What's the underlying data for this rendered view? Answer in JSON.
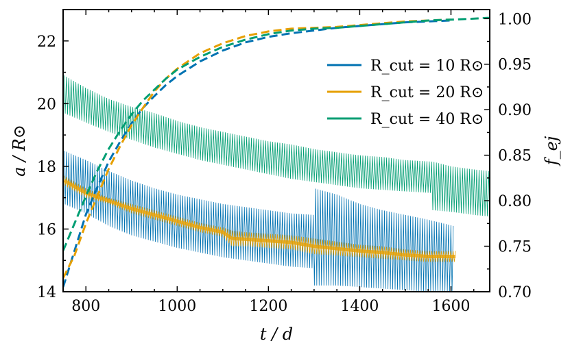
{
  "chart_data": {
    "type": "line",
    "title": "",
    "xlabel": "t / d",
    "ylabel_left": "a / R⊙",
    "ylabel_right": "f_ej",
    "xlim": [
      750,
      1685
    ],
    "ylim_left": [
      14,
      23
    ],
    "ylim_right": [
      0.7,
      1.01
    ],
    "xticks": [
      800,
      1000,
      1200,
      1400,
      1600
    ],
    "yticks_left": [
      14,
      16,
      18,
      20,
      22
    ],
    "yticks_right": [
      0.7,
      0.75,
      0.8,
      0.85,
      0.9,
      0.95,
      1.0
    ],
    "grid": false,
    "legend_position": "upper-right",
    "legend": [
      {
        "label": "R_cut = 10 R⊙",
        "color": "#0072b2"
      },
      {
        "label": "R_cut = 20 R⊙",
        "color": "#e69f00"
      },
      {
        "label": "R_cut = 40 R⊙",
        "color": "#009e73"
      }
    ],
    "series": [
      {
        "name": "R_cut = 10 R⊙ — separation a (oscillating band)",
        "axis": "left",
        "style": "band",
        "color": "#0072b2",
        "x": [
          752,
          800,
          850,
          900,
          950,
          1000,
          1050,
          1100,
          1150,
          1200,
          1250,
          1299,
          1300,
          1350,
          1400,
          1450,
          1500,
          1550,
          1605
        ],
        "low": [
          16.8,
          16.5,
          16.1,
          15.8,
          15.6,
          15.4,
          15.25,
          15.1,
          15.0,
          14.9,
          14.8,
          14.75,
          14.2,
          14.2,
          14.15,
          14.1,
          14.05,
          14.0,
          14.0
        ],
        "high": [
          18.5,
          18.2,
          17.85,
          17.55,
          17.3,
          17.1,
          16.95,
          16.8,
          16.7,
          16.6,
          16.5,
          16.45,
          17.3,
          17.1,
          16.8,
          16.6,
          16.45,
          16.3,
          16.1
        ]
      },
      {
        "name": "R_cut = 20 R⊙ — separation a (oscillating band)",
        "axis": "left",
        "style": "band",
        "color": "#e69f00",
        "x": [
          752,
          800,
          850,
          900,
          950,
          1000,
          1050,
          1100,
          1120,
          1150,
          1200,
          1250,
          1300,
          1350,
          1400,
          1450,
          1500,
          1550,
          1610
        ],
        "low": [
          17.4,
          17.0,
          16.8,
          16.5,
          16.3,
          16.1,
          15.9,
          15.75,
          15.45,
          15.45,
          15.4,
          15.35,
          15.2,
          15.15,
          15.1,
          15.05,
          15.0,
          14.95,
          14.95
        ],
        "high": [
          17.7,
          17.3,
          17.0,
          16.8,
          16.6,
          16.4,
          16.2,
          16.05,
          15.95,
          15.9,
          15.85,
          15.8,
          15.7,
          15.6,
          15.5,
          15.45,
          15.35,
          15.3,
          15.3
        ]
      },
      {
        "name": "R_cut = 40 R⊙ — separation a (oscillating band)",
        "axis": "left",
        "style": "band",
        "color": "#009e73",
        "x": [
          752,
          800,
          850,
          900,
          950,
          1000,
          1050,
          1100,
          1150,
          1200,
          1250,
          1300,
          1350,
          1400,
          1450,
          1500,
          1559,
          1560,
          1600,
          1650,
          1685
        ],
        "low": [
          19.7,
          19.4,
          19.1,
          18.85,
          18.6,
          18.4,
          18.2,
          18.05,
          17.9,
          17.75,
          17.6,
          17.5,
          17.4,
          17.3,
          17.25,
          17.2,
          17.15,
          16.6,
          16.55,
          16.45,
          16.4
        ],
        "high": [
          20.9,
          20.5,
          20.15,
          19.9,
          19.7,
          19.45,
          19.25,
          19.1,
          18.95,
          18.8,
          18.7,
          18.55,
          18.45,
          18.35,
          18.3,
          18.2,
          18.15,
          18.15,
          18.0,
          17.9,
          17.85
        ]
      },
      {
        "name": "R_cut = 10 R⊙ — f_ej",
        "axis": "right",
        "style": "dashed",
        "color": "#0072b2",
        "x": [
          750,
          775,
          800,
          825,
          850,
          875,
          900,
          925,
          950,
          975,
          1000,
          1050,
          1100,
          1150,
          1200,
          1250,
          1300,
          1350,
          1400,
          1450,
          1500,
          1550,
          1600
        ],
        "y": [
          0.705,
          0.745,
          0.785,
          0.815,
          0.843,
          0.865,
          0.885,
          0.902,
          0.915,
          0.927,
          0.937,
          0.953,
          0.965,
          0.974,
          0.98,
          0.984,
          0.987,
          0.99,
          0.992,
          0.994,
          0.996,
          0.997,
          0.998
        ]
      },
      {
        "name": "R_cut = 20 R⊙ — f_ej",
        "axis": "right",
        "style": "dashed",
        "color": "#e69f00",
        "x": [
          750,
          775,
          800,
          825,
          850,
          875,
          900,
          925,
          950,
          975,
          1000,
          1050,
          1100,
          1150,
          1200,
          1250,
          1300,
          1350,
          1400,
          1450,
          1500,
          1550,
          1600
        ],
        "y": [
          0.715,
          0.74,
          0.775,
          0.805,
          0.835,
          0.86,
          0.883,
          0.902,
          0.92,
          0.934,
          0.945,
          0.962,
          0.973,
          0.981,
          0.986,
          0.989,
          0.99,
          0.991,
          0.993,
          0.995,
          0.997,
          0.998,
          0.999
        ]
      },
      {
        "name": "R_cut = 40 R⊙ — f_ej",
        "axis": "right",
        "style": "dashed",
        "color": "#009e73",
        "x": [
          750,
          775,
          800,
          825,
          850,
          875,
          900,
          925,
          950,
          975,
          1000,
          1050,
          1100,
          1150,
          1200,
          1250,
          1300,
          1350,
          1400,
          1450,
          1500,
          1550,
          1600,
          1650,
          1685
        ],
        "y": [
          0.745,
          0.775,
          0.805,
          0.833,
          0.857,
          0.877,
          0.895,
          0.91,
          0.922,
          0.934,
          0.944,
          0.958,
          0.969,
          0.977,
          0.983,
          0.987,
          0.989,
          0.99,
          0.992,
          0.994,
          0.996,
          0.998,
          0.999,
          1.0,
          1.001
        ]
      }
    ]
  }
}
